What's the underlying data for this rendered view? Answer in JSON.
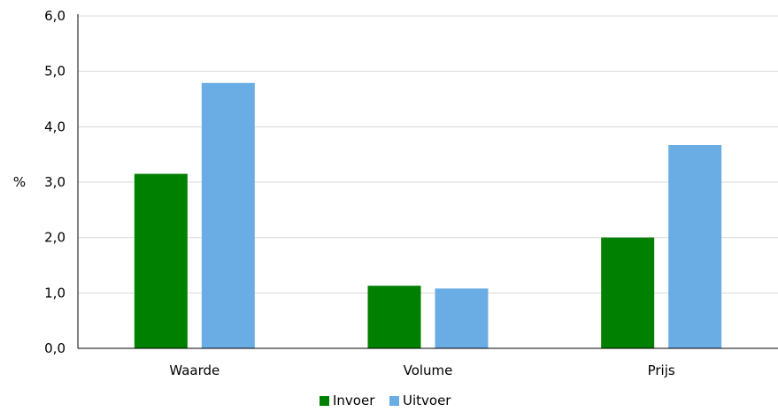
{
  "chart_data": {
    "type": "bar",
    "categories": [
      "Waarde",
      "Volume",
      "Prijs"
    ],
    "series": [
      {
        "name": "Invoer",
        "color": "#008000",
        "values": [
          3.15,
          1.13,
          2.0
        ]
      },
      {
        "name": "Uitvoer",
        "color": "#6aace4",
        "values": [
          4.79,
          1.08,
          3.67
        ]
      }
    ],
    "ylabel": "%",
    "ylim": [
      0,
      6
    ],
    "yticks": [
      "0,0",
      "1,0",
      "2,0",
      "3,0",
      "4,0",
      "5,0",
      "6,0"
    ],
    "grid": true,
    "legend": "bottom"
  }
}
